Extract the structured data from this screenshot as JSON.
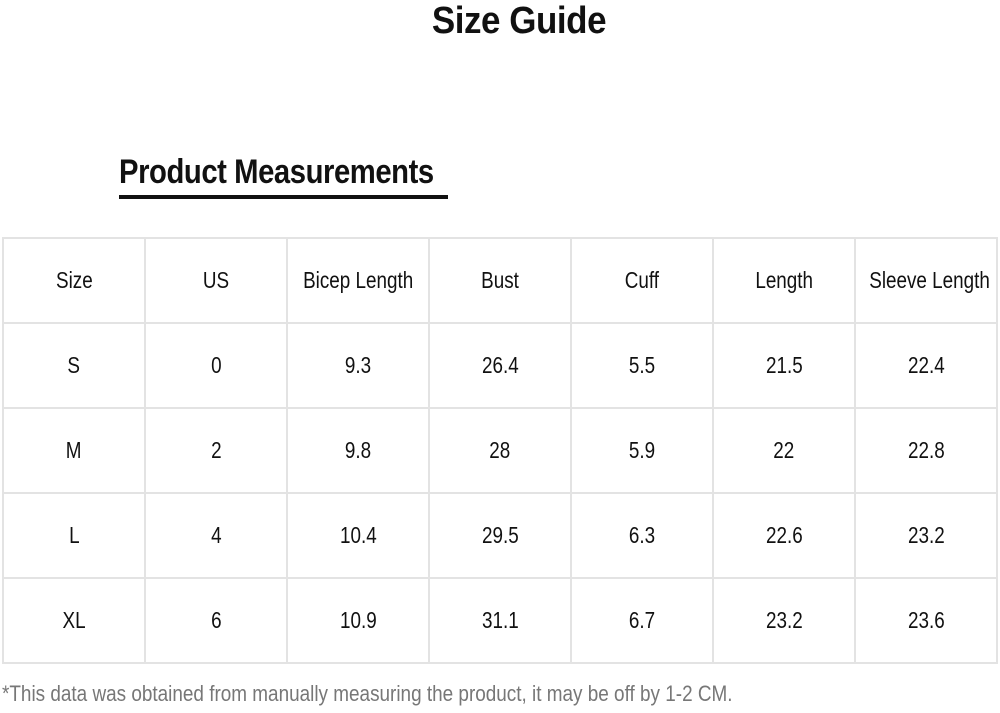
{
  "title": "Size Guide",
  "subtitle": "Product Measurements",
  "table": {
    "headers": [
      "Size",
      "US",
      "Bicep Length",
      "Bust",
      "Cuff",
      "Length",
      "Sleeve Length"
    ],
    "rows": [
      [
        "S",
        "0",
        "9.3",
        "26.4",
        "5.5",
        "21.5",
        "22.4"
      ],
      [
        "M",
        "2",
        "9.8",
        "28",
        "5.9",
        "22",
        "22.8"
      ],
      [
        "L",
        "4",
        "10.4",
        "29.5",
        "6.3",
        "22.6",
        "23.2"
      ],
      [
        "XL",
        "6",
        "10.9",
        "31.1",
        "6.7",
        "23.2",
        "23.6"
      ]
    ]
  },
  "footer": "*This data was obtained from manually measuring the product, it may be off by 1-2 CM."
}
